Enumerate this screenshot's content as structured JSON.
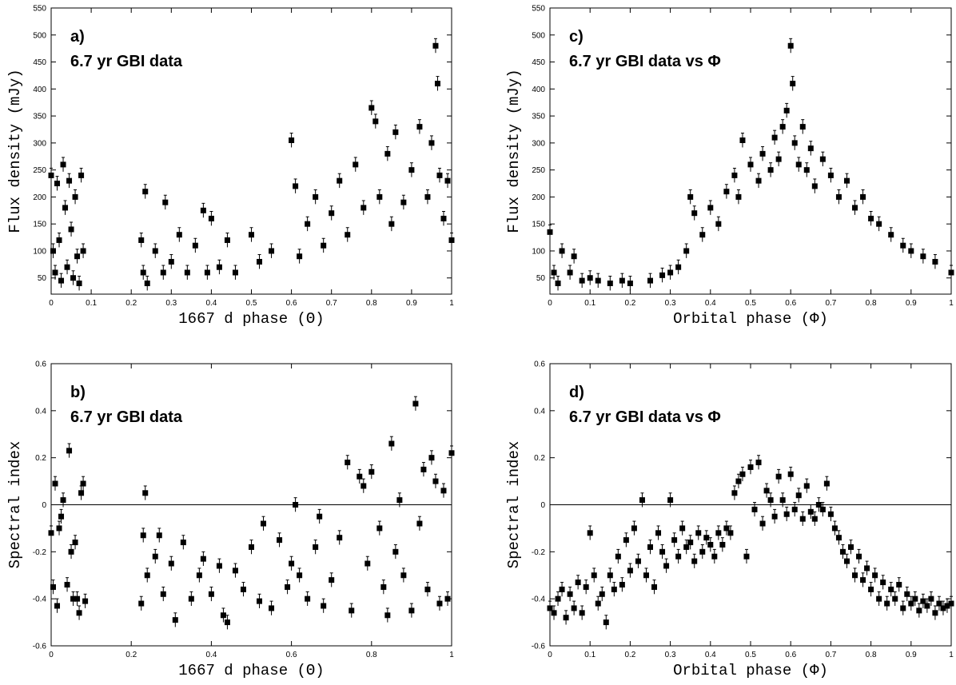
{
  "chart_data": [
    {
      "panel": "a)",
      "type": "scatter",
      "title": "6.7 yr GBI data",
      "xlabel": "1667 d phase (Θ)",
      "ylabel": "Flux density (mJy)",
      "xlim": [
        0,
        1
      ],
      "ylim": [
        20,
        550
      ],
      "xticks": [
        "0",
        "0.1",
        "0.2",
        "0.3",
        "0.4",
        "0.5",
        "0.6",
        "0.7",
        "0.8",
        "0.9",
        "1"
      ],
      "yticks": [
        "50",
        "100",
        "150",
        "200",
        "250",
        "300",
        "350",
        "400",
        "450",
        "500",
        "550"
      ],
      "error_bars": true,
      "points": [
        [
          0.0,
          240
        ],
        [
          0.005,
          100
        ],
        [
          0.01,
          60
        ],
        [
          0.015,
          225
        ],
        [
          0.02,
          120
        ],
        [
          0.025,
          45
        ],
        [
          0.03,
          260
        ],
        [
          0.035,
          180
        ],
        [
          0.04,
          70
        ],
        [
          0.045,
          230
        ],
        [
          0.05,
          140
        ],
        [
          0.055,
          50
        ],
        [
          0.06,
          200
        ],
        [
          0.065,
          90
        ],
        [
          0.07,
          40
        ],
        [
          0.075,
          240
        ],
        [
          0.08,
          100
        ],
        [
          0.225,
          120
        ],
        [
          0.23,
          60
        ],
        [
          0.235,
          210
        ],
        [
          0.24,
          40
        ],
        [
          0.26,
          100
        ],
        [
          0.28,
          60
        ],
        [
          0.285,
          190
        ],
        [
          0.3,
          80
        ],
        [
          0.32,
          130
        ],
        [
          0.34,
          60
        ],
        [
          0.36,
          110
        ],
        [
          0.38,
          175
        ],
        [
          0.39,
          60
        ],
        [
          0.4,
          160
        ],
        [
          0.42,
          70
        ],
        [
          0.44,
          120
        ],
        [
          0.46,
          60
        ],
        [
          0.5,
          130
        ],
        [
          0.52,
          80
        ],
        [
          0.55,
          100
        ],
        [
          0.6,
          305
        ],
        [
          0.61,
          220
        ],
        [
          0.62,
          90
        ],
        [
          0.64,
          150
        ],
        [
          0.66,
          200
        ],
        [
          0.68,
          110
        ],
        [
          0.7,
          170
        ],
        [
          0.72,
          230
        ],
        [
          0.74,
          130
        ],
        [
          0.76,
          260
        ],
        [
          0.78,
          180
        ],
        [
          0.8,
          365
        ],
        [
          0.81,
          340
        ],
        [
          0.82,
          200
        ],
        [
          0.84,
          280
        ],
        [
          0.85,
          150
        ],
        [
          0.86,
          320
        ],
        [
          0.88,
          190
        ],
        [
          0.9,
          250
        ],
        [
          0.92,
          330
        ],
        [
          0.94,
          200
        ],
        [
          0.95,
          300
        ],
        [
          0.96,
          480
        ],
        [
          0.965,
          410
        ],
        [
          0.97,
          240
        ],
        [
          0.98,
          160
        ],
        [
          0.99,
          230
        ],
        [
          1.0,
          120
        ]
      ]
    },
    {
      "panel": "b)",
      "type": "scatter",
      "title": "6.7 yr GBI data",
      "xlabel": "1667 d phase (Θ)",
      "ylabel": "Spectral index",
      "xlim": [
        0,
        1
      ],
      "ylim": [
        -0.6,
        0.6
      ],
      "xticks": [
        "0",
        "0.2",
        "0.4",
        "0.6",
        "0.8",
        "1"
      ],
      "yticks": [
        "-0.6",
        "-0.4",
        "-0.2",
        "0",
        "0.2",
        "0.4",
        "0.6"
      ],
      "reference_line_y": 0,
      "error_bars": true,
      "points": [
        [
          0.0,
          -0.12
        ],
        [
          0.005,
          -0.35
        ],
        [
          0.01,
          0.09
        ],
        [
          0.015,
          -0.43
        ],
        [
          0.02,
          -0.1
        ],
        [
          0.025,
          -0.05
        ],
        [
          0.03,
          0.02
        ],
        [
          0.04,
          -0.34
        ],
        [
          0.045,
          0.23
        ],
        [
          0.05,
          -0.2
        ],
        [
          0.055,
          -0.4
        ],
        [
          0.06,
          -0.16
        ],
        [
          0.065,
          -0.4
        ],
        [
          0.07,
          -0.46
        ],
        [
          0.075,
          0.05
        ],
        [
          0.08,
          0.09
        ],
        [
          0.085,
          -0.41
        ],
        [
          0.225,
          -0.42
        ],
        [
          0.23,
          -0.13
        ],
        [
          0.235,
          0.05
        ],
        [
          0.24,
          -0.3
        ],
        [
          0.26,
          -0.22
        ],
        [
          0.27,
          -0.13
        ],
        [
          0.28,
          -0.38
        ],
        [
          0.3,
          -0.25
        ],
        [
          0.31,
          -0.49
        ],
        [
          0.33,
          -0.16
        ],
        [
          0.35,
          -0.4
        ],
        [
          0.37,
          -0.3
        ],
        [
          0.38,
          -0.23
        ],
        [
          0.4,
          -0.38
        ],
        [
          0.42,
          -0.26
        ],
        [
          0.43,
          -0.47
        ],
        [
          0.44,
          -0.5
        ],
        [
          0.46,
          -0.28
        ],
        [
          0.48,
          -0.36
        ],
        [
          0.5,
          -0.18
        ],
        [
          0.52,
          -0.41
        ],
        [
          0.53,
          -0.08
        ],
        [
          0.55,
          -0.44
        ],
        [
          0.57,
          -0.15
        ],
        [
          0.59,
          -0.35
        ],
        [
          0.6,
          -0.25
        ],
        [
          0.61,
          0.0
        ],
        [
          0.62,
          -0.3
        ],
        [
          0.64,
          -0.4
        ],
        [
          0.66,
          -0.18
        ],
        [
          0.67,
          -0.05
        ],
        [
          0.68,
          -0.43
        ],
        [
          0.7,
          -0.32
        ],
        [
          0.72,
          -0.14
        ],
        [
          0.74,
          0.18
        ],
        [
          0.75,
          -0.45
        ],
        [
          0.77,
          0.12
        ],
        [
          0.78,
          0.08
        ],
        [
          0.79,
          -0.25
        ],
        [
          0.8,
          0.14
        ],
        [
          0.82,
          -0.1
        ],
        [
          0.83,
          -0.35
        ],
        [
          0.84,
          -0.47
        ],
        [
          0.85,
          0.26
        ],
        [
          0.86,
          -0.2
        ],
        [
          0.87,
          0.02
        ],
        [
          0.88,
          -0.3
        ],
        [
          0.9,
          -0.45
        ],
        [
          0.91,
          0.43
        ],
        [
          0.92,
          -0.08
        ],
        [
          0.93,
          0.15
        ],
        [
          0.94,
          -0.36
        ],
        [
          0.95,
          0.2
        ],
        [
          0.96,
          0.1
        ],
        [
          0.97,
          -0.42
        ],
        [
          0.98,
          0.06
        ],
        [
          0.99,
          -0.4
        ],
        [
          1.0,
          0.22
        ]
      ]
    },
    {
      "panel": "c)",
      "type": "scatter",
      "title": "6.7 yr GBI data vs Φ",
      "xlabel": "Orbital phase (Φ)",
      "ylabel": "Flux density (mJy)",
      "xlim": [
        0,
        1
      ],
      "ylim": [
        20,
        550
      ],
      "xticks": [
        "0",
        "0.1",
        "0.2",
        "0.3",
        "0.4",
        "0.5",
        "0.6",
        "0.7",
        "0.8",
        "0.9",
        "1"
      ],
      "yticks": [
        "50",
        "100",
        "150",
        "200",
        "250",
        "300",
        "350",
        "400",
        "450",
        "500",
        "550"
      ],
      "error_bars": true,
      "points": [
        [
          0.0,
          135
        ],
        [
          0.01,
          60
        ],
        [
          0.02,
          40
        ],
        [
          0.03,
          100
        ],
        [
          0.05,
          60
        ],
        [
          0.06,
          90
        ],
        [
          0.08,
          45
        ],
        [
          0.1,
          50
        ],
        [
          0.12,
          45
        ],
        [
          0.15,
          40
        ],
        [
          0.18,
          45
        ],
        [
          0.2,
          40
        ],
        [
          0.25,
          45
        ],
        [
          0.28,
          55
        ],
        [
          0.3,
          60
        ],
        [
          0.32,
          70
        ],
        [
          0.34,
          100
        ],
        [
          0.35,
          200
        ],
        [
          0.36,
          170
        ],
        [
          0.38,
          130
        ],
        [
          0.4,
          180
        ],
        [
          0.42,
          150
        ],
        [
          0.44,
          210
        ],
        [
          0.46,
          240
        ],
        [
          0.47,
          200
        ],
        [
          0.48,
          305
        ],
        [
          0.5,
          260
        ],
        [
          0.52,
          230
        ],
        [
          0.53,
          280
        ],
        [
          0.55,
          250
        ],
        [
          0.56,
          310
        ],
        [
          0.57,
          270
        ],
        [
          0.58,
          330
        ],
        [
          0.59,
          360
        ],
        [
          0.6,
          480
        ],
        [
          0.605,
          410
        ],
        [
          0.61,
          300
        ],
        [
          0.62,
          260
        ],
        [
          0.63,
          330
        ],
        [
          0.64,
          250
        ],
        [
          0.65,
          290
        ],
        [
          0.66,
          220
        ],
        [
          0.68,
          270
        ],
        [
          0.7,
          240
        ],
        [
          0.72,
          200
        ],
        [
          0.74,
          230
        ],
        [
          0.76,
          180
        ],
        [
          0.78,
          200
        ],
        [
          0.8,
          160
        ],
        [
          0.82,
          150
        ],
        [
          0.85,
          130
        ],
        [
          0.88,
          110
        ],
        [
          0.9,
          100
        ],
        [
          0.93,
          90
        ],
        [
          0.96,
          80
        ],
        [
          1.0,
          60
        ]
      ]
    },
    {
      "panel": "d)",
      "type": "scatter",
      "title": "6.7 yr GBI data vs Φ",
      "xlabel": "Orbital phase (Φ)",
      "ylabel": "Spectral index",
      "xlim": [
        0,
        1
      ],
      "ylim": [
        -0.6,
        0.6
      ],
      "xticks": [
        "0",
        "0.1",
        "0.2",
        "0.3",
        "0.4",
        "0.5",
        "0.6",
        "0.7",
        "0.8",
        "0.9",
        "1"
      ],
      "yticks": [
        "-0.6",
        "-0.4",
        "-0.2",
        "0",
        "0.2",
        "0.4",
        "0.6"
      ],
      "reference_line_y": 0,
      "error_bars": true,
      "points": [
        [
          0.0,
          -0.44
        ],
        [
          0.01,
          -0.46
        ],
        [
          0.02,
          -0.4
        ],
        [
          0.03,
          -0.36
        ],
        [
          0.04,
          -0.48
        ],
        [
          0.05,
          -0.38
        ],
        [
          0.06,
          -0.44
        ],
        [
          0.07,
          -0.33
        ],
        [
          0.08,
          -0.46
        ],
        [
          0.09,
          -0.35
        ],
        [
          0.1,
          -0.12
        ],
        [
          0.11,
          -0.3
        ],
        [
          0.12,
          -0.42
        ],
        [
          0.13,
          -0.38
        ],
        [
          0.14,
          -0.5
        ],
        [
          0.15,
          -0.3
        ],
        [
          0.16,
          -0.36
        ],
        [
          0.17,
          -0.22
        ],
        [
          0.18,
          -0.34
        ],
        [
          0.19,
          -0.15
        ],
        [
          0.2,
          -0.28
        ],
        [
          0.21,
          -0.1
        ],
        [
          0.22,
          -0.24
        ],
        [
          0.23,
          0.02
        ],
        [
          0.24,
          -0.3
        ],
        [
          0.25,
          -0.18
        ],
        [
          0.26,
          -0.35
        ],
        [
          0.27,
          -0.12
        ],
        [
          0.28,
          -0.2
        ],
        [
          0.29,
          -0.26
        ],
        [
          0.3,
          0.02
        ],
        [
          0.31,
          -0.15
        ],
        [
          0.32,
          -0.22
        ],
        [
          0.33,
          -0.1
        ],
        [
          0.34,
          -0.18
        ],
        [
          0.35,
          -0.16
        ],
        [
          0.36,
          -0.24
        ],
        [
          0.37,
          -0.12
        ],
        [
          0.38,
          -0.2
        ],
        [
          0.39,
          -0.14
        ],
        [
          0.4,
          -0.17
        ],
        [
          0.41,
          -0.22
        ],
        [
          0.42,
          -0.12
        ],
        [
          0.43,
          -0.17
        ],
        [
          0.44,
          -0.1
        ],
        [
          0.45,
          -0.12
        ],
        [
          0.46,
          0.05
        ],
        [
          0.47,
          0.1
        ],
        [
          0.48,
          0.13
        ],
        [
          0.49,
          -0.22
        ],
        [
          0.5,
          0.16
        ],
        [
          0.51,
          -0.02
        ],
        [
          0.52,
          0.18
        ],
        [
          0.53,
          -0.08
        ],
        [
          0.54,
          0.06
        ],
        [
          0.55,
          0.02
        ],
        [
          0.56,
          -0.05
        ],
        [
          0.57,
          0.12
        ],
        [
          0.58,
          0.02
        ],
        [
          0.59,
          -0.04
        ],
        [
          0.6,
          0.13
        ],
        [
          0.61,
          -0.02
        ],
        [
          0.62,
          0.04
        ],
        [
          0.63,
          -0.06
        ],
        [
          0.64,
          0.08
        ],
        [
          0.65,
          -0.03
        ],
        [
          0.66,
          -0.06
        ],
        [
          0.67,
          0.0
        ],
        [
          0.68,
          -0.02
        ],
        [
          0.69,
          0.09
        ],
        [
          0.7,
          -0.04
        ],
        [
          0.71,
          -0.1
        ],
        [
          0.72,
          -0.14
        ],
        [
          0.73,
          -0.2
        ],
        [
          0.74,
          -0.24
        ],
        [
          0.75,
          -0.18
        ],
        [
          0.76,
          -0.3
        ],
        [
          0.77,
          -0.22
        ],
        [
          0.78,
          -0.32
        ],
        [
          0.79,
          -0.27
        ],
        [
          0.8,
          -0.36
        ],
        [
          0.81,
          -0.3
        ],
        [
          0.82,
          -0.4
        ],
        [
          0.83,
          -0.33
        ],
        [
          0.84,
          -0.42
        ],
        [
          0.85,
          -0.36
        ],
        [
          0.86,
          -0.4
        ],
        [
          0.87,
          -0.34
        ],
        [
          0.88,
          -0.44
        ],
        [
          0.89,
          -0.38
        ],
        [
          0.9,
          -0.42
        ],
        [
          0.91,
          -0.4
        ],
        [
          0.92,
          -0.45
        ],
        [
          0.93,
          -0.41
        ],
        [
          0.94,
          -0.43
        ],
        [
          0.95,
          -0.4
        ],
        [
          0.96,
          -0.46
        ],
        [
          0.97,
          -0.42
        ],
        [
          0.98,
          -0.44
        ],
        [
          0.99,
          -0.43
        ],
        [
          1.0,
          -0.42
        ]
      ]
    }
  ]
}
